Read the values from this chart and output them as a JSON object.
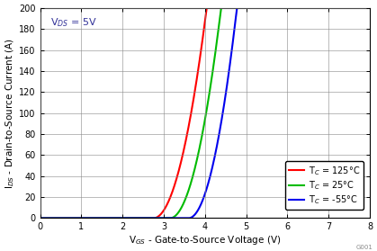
{
  "title_annotation": "V$_{DS}$ = 5V",
  "xlabel": "V$_{GS}$ - Gate-to-Source Voltage (V)",
  "ylabel": "I$_{DS}$ - Drain-to-Source Current (A)",
  "xlim": [
    0,
    8
  ],
  "ylim": [
    0,
    200
  ],
  "xticks": [
    0,
    1,
    2,
    3,
    4,
    5,
    6,
    7,
    8
  ],
  "yticks": [
    0,
    20,
    40,
    60,
    80,
    100,
    120,
    140,
    160,
    180,
    200
  ],
  "curves": [
    {
      "label": "T$_C$ = 125°C",
      "color": "#ff0000",
      "vth": 2.75,
      "k": 120.0,
      "exp": 2.0
    },
    {
      "label": "T$_C$ = 25°C",
      "color": "#00bb00",
      "vth": 3.15,
      "k": 130.0,
      "exp": 2.0
    },
    {
      "label": "T$_C$ = -55°C",
      "color": "#0000ee",
      "vth": 3.6,
      "k": 145.0,
      "exp": 2.0
    }
  ],
  "watermark": "G001",
  "background_color": "#ffffff",
  "grid_color": "#888888",
  "linewidth": 1.5
}
